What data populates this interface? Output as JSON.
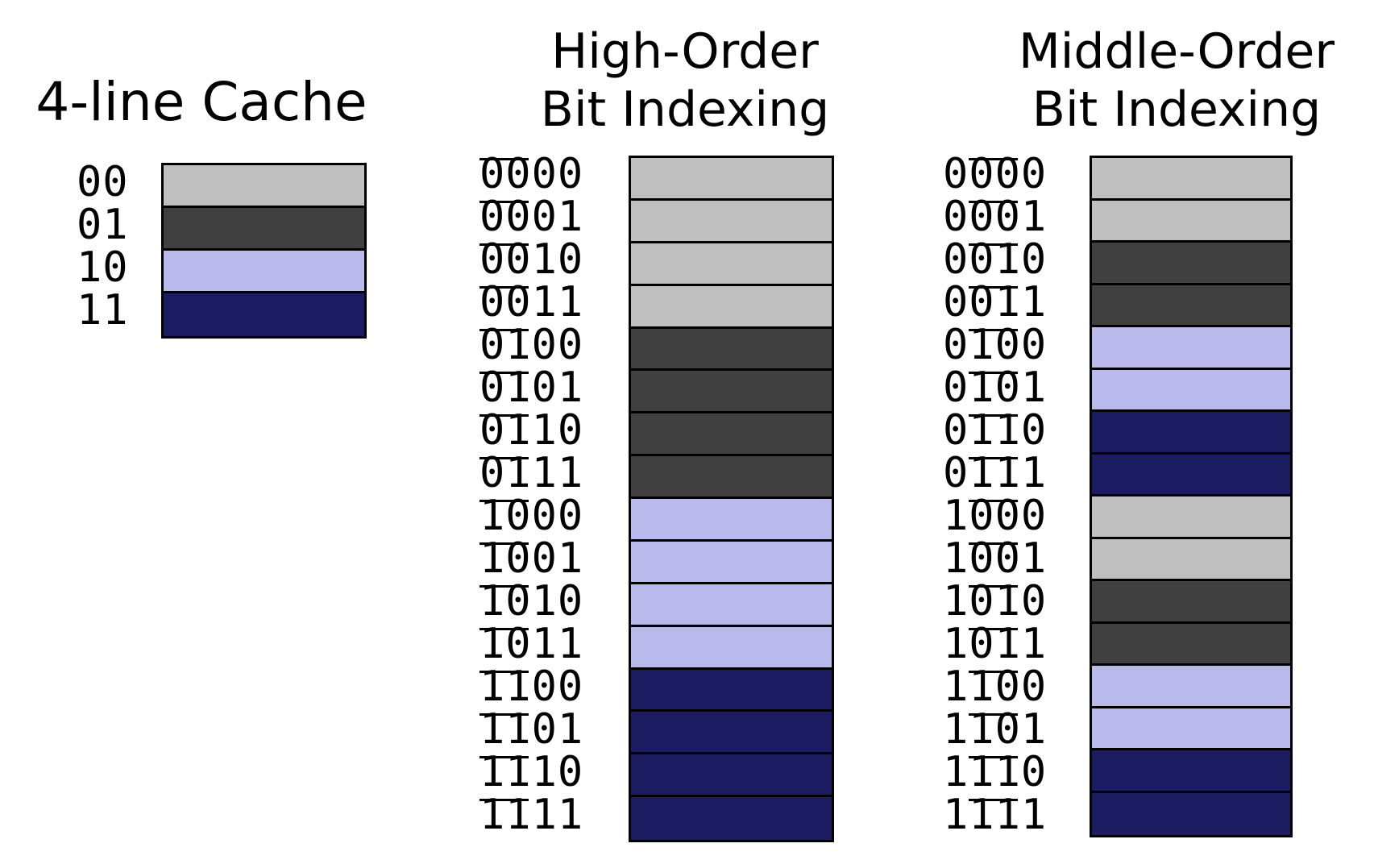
{
  "colors": {
    "line_00": "#c0c0c0",
    "line_01": "#404040",
    "line_10": "#b9b9eb",
    "line_11": "#1c1c62"
  },
  "cache": {
    "title": "4-line Cache",
    "lines": [
      "00",
      "01",
      "10",
      "11"
    ]
  },
  "high_order": {
    "title_line1": "High-Order",
    "title_line2": "Bit Indexing",
    "addresses": [
      "0000",
      "0001",
      "0010",
      "0011",
      "0100",
      "0101",
      "0110",
      "0111",
      "1000",
      "1001",
      "1010",
      "1011",
      "1100",
      "1101",
      "1110",
      "1111"
    ],
    "index_bits": [
      0,
      1
    ],
    "mapped_line": [
      "00",
      "00",
      "00",
      "00",
      "01",
      "01",
      "01",
      "01",
      "10",
      "10",
      "10",
      "10",
      "11",
      "11",
      "11",
      "11"
    ]
  },
  "middle_order": {
    "title_line1": "Middle-Order",
    "title_line2": "Bit Indexing",
    "addresses": [
      "0000",
      "0001",
      "0010",
      "0011",
      "0100",
      "0101",
      "0110",
      "0111",
      "1000",
      "1001",
      "1010",
      "1011",
      "1100",
      "1101",
      "1110",
      "1111"
    ],
    "index_bits": [
      1,
      2
    ],
    "mapped_line": [
      "00",
      "00",
      "01",
      "01",
      "10",
      "10",
      "11",
      "11",
      "00",
      "00",
      "01",
      "01",
      "10",
      "10",
      "11",
      "11"
    ]
  }
}
